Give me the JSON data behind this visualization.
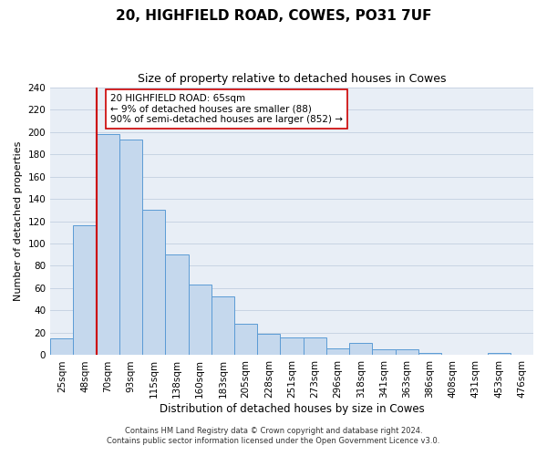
{
  "title": "20, HIGHFIELD ROAD, COWES, PO31 7UF",
  "subtitle": "Size of property relative to detached houses in Cowes",
  "xlabel": "Distribution of detached houses by size in Cowes",
  "ylabel": "Number of detached properties",
  "bar_labels": [
    "25sqm",
    "48sqm",
    "70sqm",
    "93sqm",
    "115sqm",
    "138sqm",
    "160sqm",
    "183sqm",
    "205sqm",
    "228sqm",
    "251sqm",
    "273sqm",
    "296sqm",
    "318sqm",
    "341sqm",
    "363sqm",
    "386sqm",
    "408sqm",
    "431sqm",
    "453sqm",
    "476sqm"
  ],
  "bar_heights": [
    15,
    116,
    198,
    193,
    130,
    90,
    63,
    53,
    28,
    19,
    16,
    16,
    6,
    11,
    5,
    5,
    2,
    0,
    0,
    2,
    0
  ],
  "bar_color": "#c5d8ed",
  "bar_edge_color": "#5b9bd5",
  "vline_x_idx": 2,
  "vline_color": "#cc0000",
  "annotation_text": "20 HIGHFIELD ROAD: 65sqm\n← 9% of detached houses are smaller (88)\n90% of semi-detached houses are larger (852) →",
  "annotation_box_color": "#ffffff",
  "annotation_box_edge_color": "#cc0000",
  "annotation_fontsize": 7.5,
  "ylim": [
    0,
    240
  ],
  "yticks": [
    0,
    20,
    40,
    60,
    80,
    100,
    120,
    140,
    160,
    180,
    200,
    220,
    240
  ],
  "grid_color": "#c8d4e3",
  "title_fontsize": 11,
  "subtitle_fontsize": 9,
  "xlabel_fontsize": 8.5,
  "ylabel_fontsize": 8,
  "tick_fontsize": 7.5,
  "footer_line1": "Contains HM Land Registry data © Crown copyright and database right 2024.",
  "footer_line2": "Contains public sector information licensed under the Open Government Licence v3.0.",
  "footer_fontsize": 6.0,
  "bg_color": "#e8eef6"
}
